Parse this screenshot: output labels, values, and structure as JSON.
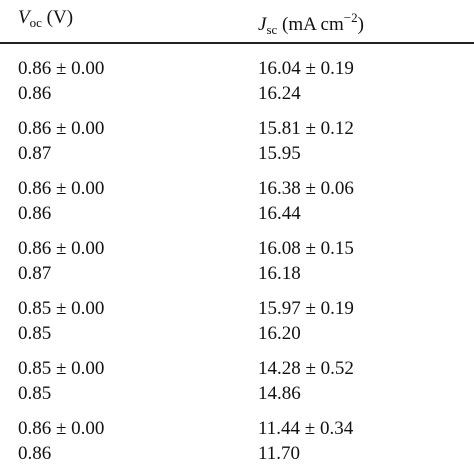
{
  "header": [
    {
      "symbol": "V",
      "subscript": "oc",
      "unit": " (V)"
    },
    {
      "symbol": "J",
      "subscript": "sc",
      "unit": " (mA cm",
      "superscript": "−2",
      "unit_end": ")"
    }
  ],
  "table": {
    "rows": [
      [
        [
          "0.86 ± 0.00",
          "0.86"
        ],
        [
          "16.04 ± 0.19",
          "16.24"
        ]
      ],
      [
        [
          "0.86 ± 0.00",
          "0.87"
        ],
        [
          "15.81 ± 0.12",
          "15.95"
        ]
      ],
      [
        [
          "0.86 ± 0.00",
          "0.86"
        ],
        [
          "16.38 ± 0.06",
          "16.44"
        ]
      ],
      [
        [
          "0.86 ± 0.00",
          "0.87"
        ],
        [
          "16.08 ± 0.15",
          "16.18"
        ]
      ],
      [
        [
          "0.85 ± 0.00",
          "0.85"
        ],
        [
          "15.97 ± 0.19",
          "16.20"
        ]
      ],
      [
        [
          "0.85 ± 0.00",
          "0.85"
        ],
        [
          "14.28 ± 0.52",
          "14.86"
        ]
      ],
      [
        [
          "0.86 ± 0.00",
          "0.86"
        ],
        [
          "11.44 ± 0.34",
          "11.70"
        ]
      ]
    ]
  }
}
